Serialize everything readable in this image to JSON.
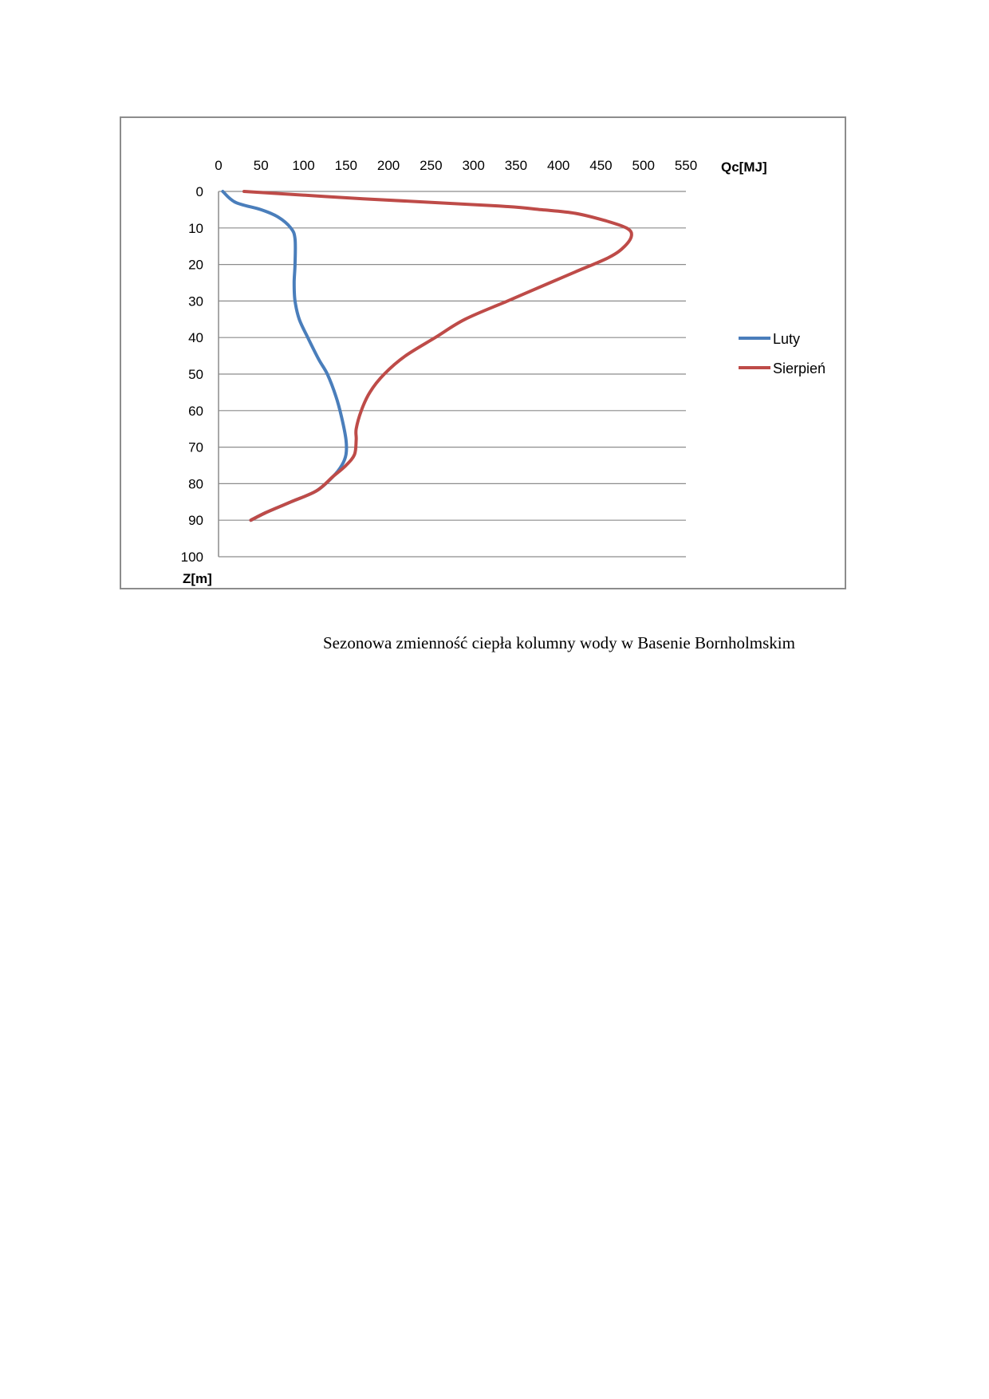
{
  "caption": "Sezonowa zmienność ciepła kolumny wody w Basenie Bornholmskim",
  "chart_data": {
    "type": "line",
    "title": "",
    "xlabel": "Qc[MJ]",
    "ylabel": "Z[m]",
    "xlim": [
      0,
      550
    ],
    "ylim": [
      0,
      100
    ],
    "y_inverted": true,
    "x_axis_position": "top",
    "x_ticks": [
      "0",
      "50",
      "100",
      "150",
      "200",
      "250",
      "300",
      "350",
      "400",
      "450",
      "500",
      "550"
    ],
    "y_ticks": [
      "0",
      "10",
      "20",
      "30",
      "40",
      "50",
      "60",
      "70",
      "80",
      "90",
      "100"
    ],
    "grid": "horizontal",
    "legend_position": "right",
    "series": [
      {
        "name": "Luty",
        "color": "#4a7ebb",
        "points": [
          [
            5,
            0
          ],
          [
            20,
            3
          ],
          [
            50,
            5
          ],
          [
            70,
            7
          ],
          [
            85,
            10
          ],
          [
            90,
            13
          ],
          [
            90,
            20
          ],
          [
            89,
            25
          ],
          [
            90,
            30
          ],
          [
            95,
            35
          ],
          [
            105,
            40
          ],
          [
            118,
            46
          ],
          [
            128,
            50
          ],
          [
            138,
            56
          ],
          [
            145,
            62
          ],
          [
            150,
            68
          ],
          [
            150,
            72
          ],
          [
            145,
            75
          ],
          [
            135,
            78
          ],
          [
            115,
            82
          ],
          [
            85,
            85
          ],
          [
            55,
            88
          ],
          [
            38,
            90
          ]
        ]
      },
      {
        "name": "Sierpień",
        "color": "#be4b48",
        "points": [
          [
            30,
            0
          ],
          [
            170,
            2
          ],
          [
            330,
            4
          ],
          [
            380,
            5
          ],
          [
            420,
            6
          ],
          [
            455,
            8
          ],
          [
            480,
            10
          ],
          [
            486,
            12
          ],
          [
            478,
            15
          ],
          [
            460,
            18
          ],
          [
            420,
            22
          ],
          [
            390,
            25
          ],
          [
            340,
            30
          ],
          [
            290,
            35
          ],
          [
            255,
            40
          ],
          [
            220,
            45
          ],
          [
            195,
            50
          ],
          [
            178,
            55
          ],
          [
            168,
            60
          ],
          [
            162,
            65
          ],
          [
            162,
            68
          ],
          [
            160,
            72
          ],
          [
            150,
            75
          ],
          [
            135,
            78
          ],
          [
            115,
            82
          ],
          [
            85,
            85
          ],
          [
            55,
            88
          ],
          [
            38,
            90
          ]
        ]
      }
    ]
  }
}
